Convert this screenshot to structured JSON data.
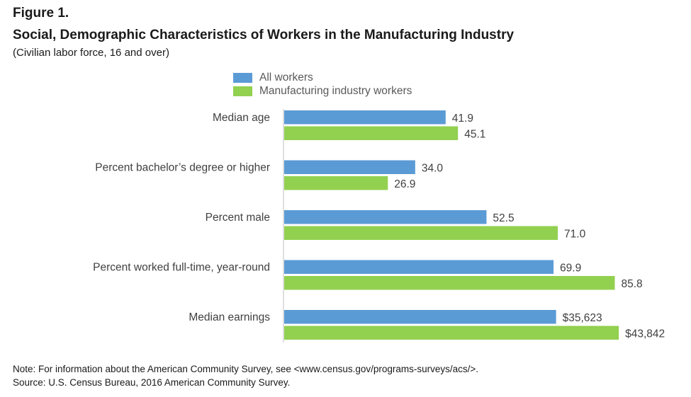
{
  "figure_label": "Figure 1.",
  "chart_data": {
    "type": "bar",
    "orientation": "horizontal",
    "title": "Social, Demographic Characteristics of Workers in the Manufacturing Industry",
    "subtitle": "(Civilian labor force, 16 and over)",
    "categories": [
      "Median age",
      "Percent bachelor’s degree or higher",
      "Percent male",
      "Percent worked full-time, year-round",
      "Median earnings"
    ],
    "series": [
      {
        "name": "All workers",
        "color": "#5b9bd5",
        "values": [
          41.9,
          34.0,
          52.5,
          69.9,
          35623
        ],
        "labels": [
          "41.9",
          "34.0",
          "52.5",
          "69.9",
          "$35,623"
        ]
      },
      {
        "name": "Manufacturing industry workers",
        "color": "#92d050",
        "values": [
          45.1,
          26.9,
          71.0,
          85.8,
          43842
        ],
        "labels": [
          "45.1",
          "26.9",
          "71.0",
          "85.8",
          "$43,842"
        ]
      }
    ],
    "earnings_scale_max": 52000,
    "percent_scale_max": 103,
    "grid": false,
    "legend_position": "top"
  },
  "notes": {
    "note": "Note: For information about the American Community Survey, see <www.census.gov/programs-surveys/acs/>.",
    "source": "Source: U.S. Census Bureau, 2016 American Community Survey."
  }
}
